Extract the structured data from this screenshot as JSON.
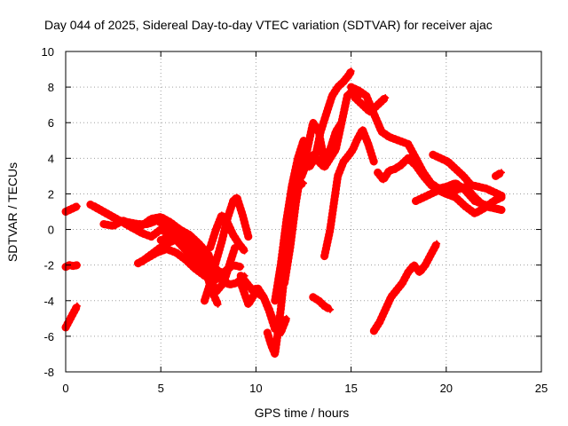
{
  "chart_data": {
    "type": "scatter",
    "title": "Day 044 of 2025, Sidereal Day-to-day VTEC variation (SDTVAR) for receiver ajac",
    "xlabel": "GPS time / hours",
    "ylabel": "SDTVAR / TECUs",
    "xlim": [
      0,
      25
    ],
    "ylim": [
      -8,
      10
    ],
    "xticks": [
      0,
      5,
      10,
      15,
      20,
      25
    ],
    "yticks": [
      -8,
      -6,
      -4,
      -2,
      0,
      2,
      4,
      6,
      8,
      10
    ],
    "grid": true,
    "marker": "plus",
    "color": "#ff0000",
    "series": [
      {
        "x": [
          0.0,
          0.2,
          0.4,
          0.6
        ],
        "y": [
          1.0,
          1.1,
          1.2,
          1.3
        ]
      },
      {
        "x": [
          0.0,
          0.2,
          0.4,
          0.6
        ],
        "y": [
          -2.1,
          -2.0,
          -2.05,
          -2.0
        ]
      },
      {
        "x": [
          0.0,
          0.2,
          0.4,
          0.6
        ],
        "y": [
          -5.5,
          -5.1,
          -4.7,
          -4.3
        ]
      },
      {
        "x": [
          1.3,
          1.8,
          2.3,
          2.8,
          3.3,
          3.8,
          4.3,
          4.8,
          5.3,
          5.8,
          6.3,
          6.8,
          7.2,
          7.6,
          8.0,
          8.4
        ],
        "y": [
          1.4,
          1.1,
          0.8,
          0.5,
          0.4,
          0.3,
          0.3,
          0.5,
          0.2,
          -0.2,
          -0.6,
          -1.2,
          -1.6,
          -2.0,
          -2.3,
          -2.6
        ]
      },
      {
        "x": [
          1.5,
          2.0,
          2.5,
          3.0,
          3.5,
          4.0,
          4.5,
          5.0,
          5.5,
          6.0,
          6.5,
          7.0,
          7.5
        ],
        "y": [
          1.3,
          1.0,
          0.7,
          0.4,
          0.1,
          -0.2,
          -0.4,
          0.0,
          -0.3,
          -0.8,
          -1.4,
          -2.1,
          -2.6
        ]
      },
      {
        "x": [
          2.0,
          2.5,
          3.0,
          3.5,
          4.0,
          4.5,
          5.0,
          5.5,
          6.0,
          6.5,
          7.0,
          7.4,
          7.7,
          8.0
        ],
        "y": [
          0.3,
          0.2,
          0.5,
          0.3,
          0.2,
          0.6,
          0.7,
          0.4,
          0.0,
          -0.6,
          -1.5,
          -2.5,
          -3.5,
          -4.2
        ]
      },
      {
        "x": [
          4.0,
          4.5,
          5.0,
          5.5,
          6.0,
          6.5,
          7.0,
          7.5,
          7.9,
          8.3,
          8.6,
          8.9
        ],
        "y": [
          -1.8,
          -1.4,
          -1.0,
          -0.7,
          -0.5,
          -0.7,
          -1.2,
          -2.4,
          -3.5,
          -3.0,
          -2.0,
          -1.0
        ]
      },
      {
        "x": [
          3.8,
          4.3,
          4.8,
          5.3,
          5.8,
          6.3,
          6.8,
          7.3,
          7.8,
          8.3,
          8.8,
          9.2
        ],
        "y": [
          -1.9,
          -1.6,
          -1.3,
          -1.1,
          -1.3,
          -1.7,
          -2.2,
          -2.6,
          -2.9,
          -2.4,
          -2.0,
          -2.1
        ]
      },
      {
        "x": [
          5.0,
          5.5,
          6.0,
          6.5,
          7.0,
          7.5,
          7.8,
          8.2,
          8.6,
          9.0,
          9.4
        ],
        "y": [
          -0.6,
          -0.4,
          0.0,
          -0.3,
          -0.8,
          -1.4,
          -2.2,
          -2.8,
          -3.1,
          -3.0,
          -2.6
        ]
      },
      {
        "x": [
          7.3,
          7.6,
          7.9,
          8.2,
          8.5,
          8.8,
          9.0,
          9.3,
          9.6
        ],
        "y": [
          -4.0,
          -3.0,
          -1.8,
          -0.7,
          0.6,
          1.6,
          1.8,
          0.8,
          -0.4
        ]
      },
      {
        "x": [
          7.6,
          7.9,
          8.2,
          8.5,
          8.8,
          9.1,
          9.4
        ],
        "y": [
          -1.0,
          0.0,
          0.8,
          0.4,
          -0.3,
          -0.8,
          -1.2
        ]
      },
      {
        "x": [
          9.2,
          9.5,
          9.8,
          10.1,
          10.4,
          10.7,
          11.0
        ],
        "y": [
          -2.6,
          -3.0,
          -3.4,
          -3.3,
          -3.8,
          -4.6,
          -5.6
        ]
      },
      {
        "x": [
          9.2,
          9.6,
          10.0,
          10.4,
          10.7,
          11.0,
          11.3,
          11.6
        ],
        "y": [
          -3.0,
          -4.2,
          -3.5,
          -3.8,
          -4.5,
          -5.4,
          -5.8,
          -5.0
        ]
      },
      {
        "x": [
          10.6,
          10.8,
          11.0,
          11.1,
          11.3,
          11.5,
          11.7,
          11.9,
          12.1,
          12.3,
          12.5
        ],
        "y": [
          -5.8,
          -6.5,
          -7.0,
          -6.2,
          -4.5,
          -2.5,
          -0.5,
          1.0,
          2.0,
          2.5,
          2.6
        ]
      },
      {
        "x": [
          11.0,
          11.3,
          11.6,
          11.9,
          12.2,
          12.5,
          12.8,
          13.1,
          13.4,
          13.7,
          14.0,
          14.3,
          14.6,
          14.9,
          15.0
        ],
        "y": [
          -4.0,
          -2.0,
          0.5,
          2.5,
          4.0,
          5.0,
          3.5,
          4.0,
          5.5,
          6.5,
          7.5,
          8.0,
          8.3,
          8.7,
          8.9
        ]
      },
      {
        "x": [
          11.5,
          11.8,
          12.1,
          12.4,
          12.7,
          13.0,
          13.3,
          13.6,
          13.9,
          14.2,
          14.5
        ],
        "y": [
          -3.0,
          -1.0,
          1.5,
          3.5,
          4.5,
          6.0,
          5.5,
          3.8,
          4.5,
          5.5,
          6.0
        ]
      },
      {
        "x": [
          12.4,
          12.7,
          13.0,
          13.3,
          13.6,
          13.9,
          14.2,
          14.5,
          14.8,
          15.1,
          15.4
        ],
        "y": [
          3.0,
          3.8,
          4.2,
          3.8,
          3.5,
          4.0,
          4.5,
          6.0,
          7.5,
          7.8,
          7.5
        ]
      },
      {
        "x": [
          13.0,
          13.3,
          13.6,
          13.9
        ],
        "y": [
          -3.8,
          -4.0,
          -4.3,
          -4.5
        ]
      },
      {
        "x": [
          13.6,
          13.9,
          14.1,
          14.3,
          14.6,
          14.9,
          15.1,
          15.3,
          15.6,
          15.9,
          16.2
        ],
        "y": [
          -1.5,
          0.0,
          1.5,
          3.0,
          3.8,
          4.2,
          4.5,
          5.0,
          5.6,
          4.8,
          3.8
        ]
      },
      {
        "x": [
          15.0,
          15.4,
          15.8,
          16.2,
          16.6,
          17.0,
          17.5,
          18.0,
          18.4,
          18.8,
          19.2,
          19.6,
          20.0,
          20.5,
          21.0,
          21.5,
          22.0,
          22.5,
          22.9
        ],
        "y": [
          8.0,
          7.8,
          7.5,
          6.5,
          5.5,
          5.2,
          5.0,
          4.8,
          4.0,
          3.2,
          2.6,
          2.3,
          2.4,
          2.6,
          2.2,
          1.6,
          1.4,
          1.2,
          1.1
        ]
      },
      {
        "x": [
          15.2,
          15.6,
          16.0,
          16.4,
          16.8
        ],
        "y": [
          7.4,
          7.0,
          6.6,
          7.0,
          7.4
        ]
      },
      {
        "x": [
          16.4,
          16.7,
          17.0,
          17.3,
          17.6,
          18.0,
          18.4,
          18.8,
          19.2,
          19.6,
          20.0,
          20.5,
          21.0,
          21.5,
          22.0,
          22.5,
          22.9
        ],
        "y": [
          3.2,
          2.8,
          3.3,
          3.4,
          3.6,
          4.0,
          3.6,
          3.0,
          2.5,
          2.2,
          2.0,
          2.2,
          2.4,
          1.8,
          1.3,
          1.2,
          1.1
        ]
      },
      {
        "x": [
          18.4,
          18.8,
          19.2,
          19.6,
          20.0,
          20.5,
          21.0,
          21.5,
          22.0,
          22.5,
          22.9
        ],
        "y": [
          1.6,
          1.8,
          2.0,
          2.2,
          2.0,
          1.8,
          1.3,
          0.9,
          1.2,
          1.6,
          1.8
        ]
      },
      {
        "x": [
          19.3,
          19.7,
          20.1,
          20.5,
          20.9,
          21.3,
          21.7,
          22.1,
          22.5,
          22.9
        ],
        "y": [
          4.2,
          4.0,
          3.8,
          3.4,
          3.0,
          2.5,
          2.4,
          2.3,
          2.1,
          1.9
        ]
      },
      {
        "x": [
          22.6,
          22.9
        ],
        "y": [
          3.0,
          3.2
        ]
      },
      {
        "x": [
          16.2,
          16.5,
          16.8,
          17.1,
          17.4,
          17.7,
          18.0,
          18.3,
          18.6,
          18.9,
          19.2,
          19.5
        ],
        "y": [
          -5.7,
          -5.2,
          -4.5,
          -3.8,
          -3.4,
          -3.0,
          -2.4,
          -2.0,
          -2.4,
          -2.0,
          -1.4,
          -0.8
        ]
      }
    ]
  }
}
